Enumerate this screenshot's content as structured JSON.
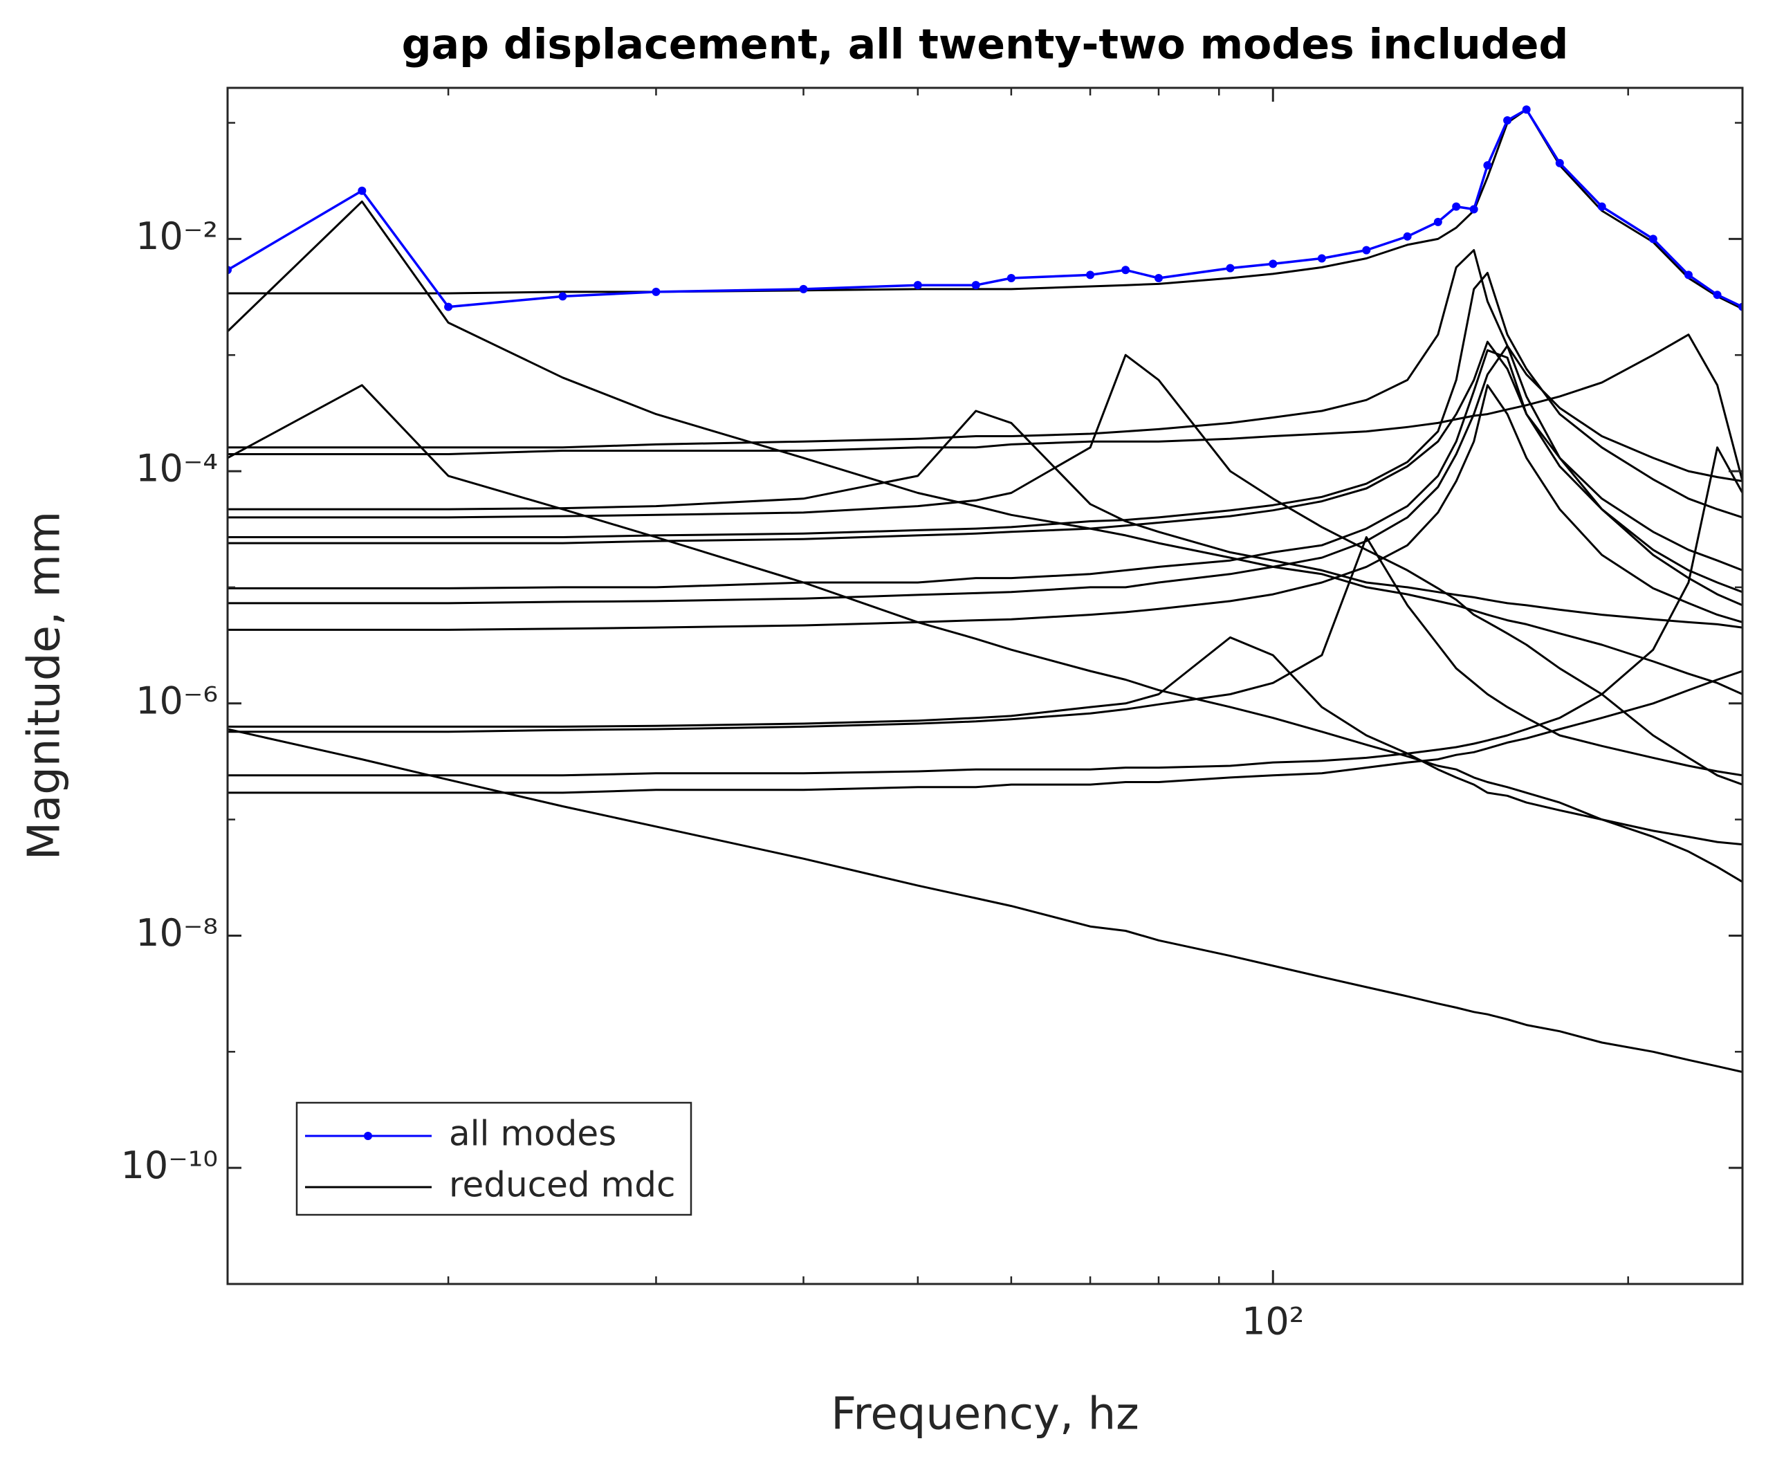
{
  "chart_data": {
    "type": "line",
    "title": "gap displacement, all twenty-two modes included",
    "x_label": "Frequency, hz",
    "y_label": "Magnitude, mm",
    "xscale": "log",
    "yscale": "log",
    "xlim": [
      13,
      250
    ],
    "ylim": [
      1e-11,
      0.2
    ],
    "xticks": [
      {
        "value": 100,
        "label": "10²"
      }
    ],
    "xminorticks": [
      20,
      30,
      40,
      50,
      60,
      70,
      80,
      90,
      200
    ],
    "yticks": [
      {
        "value": 1e-10,
        "label": "10⁻¹⁰"
      },
      {
        "value": 1e-08,
        "label": "10⁻⁸"
      },
      {
        "value": 1e-06,
        "label": "10⁻⁶"
      },
      {
        "value": 0.0001,
        "label": "10⁻⁴"
      },
      {
        "value": 0.01,
        "label": "10⁻²"
      }
    ],
    "yminorticks": [
      1e-09,
      1e-07,
      1e-05,
      0.001,
      0.1
    ],
    "grid": false,
    "legend": "lower left",
    "x": [
      13,
      16.9,
      20,
      25,
      30,
      40,
      50,
      56,
      60,
      70,
      75,
      80,
      92,
      100,
      110,
      120,
      130,
      138,
      143,
      148,
      152,
      158,
      164,
      175,
      190,
      210,
      225,
      238,
      250
    ],
    "series": [
      {
        "name": "all modes",
        "color": "#0000ff",
        "marker": "dot",
        "values": [
          0.0054,
          0.026,
          0.0026,
          0.0032,
          0.0035,
          0.0037,
          0.004,
          0.004,
          0.0046,
          0.0049,
          0.0054,
          0.0046,
          0.0056,
          0.0061,
          0.0068,
          0.008,
          0.0105,
          0.014,
          0.019,
          0.018,
          0.043,
          0.105,
          0.13,
          0.045,
          0.019,
          0.01,
          0.0049,
          0.0033,
          0.0026
        ]
      },
      {
        "name": "reduced mdc",
        "color": "#000000",
        "values": [
          [
            0.0016,
            0.021,
            0.0019,
            0.00064,
            0.00031,
            0.00013,
            6.5e-05,
            5e-05,
            4.2e-05,
            3.2e-05,
            2.8e-05,
            2.4e-05,
            1.8e-05,
            1.5e-05,
            1.3e-05,
            1e-05,
            8.7e-06,
            7.6e-06,
            7e-06,
            6.3e-06,
            5.8e-06,
            5.2e-06,
            4.8e-06,
            4e-06,
            3.2e-06,
            2.3e-06,
            1.8e-06,
            1.5e-06,
            1.2e-06
          ],
          [
            0.00013,
            0.00055,
            9.1e-05,
            4.7e-05,
            2.7e-05,
            1.1e-05,
            5e-06,
            3.6e-06,
            2.9e-06,
            1.9e-06,
            1.6e-06,
            1.3e-06,
            9.3e-07,
            7.5e-07,
            5.7e-07,
            4.4e-07,
            3.5e-07,
            2.9e-07,
            2.7e-07,
            2.3e-07,
            2.1e-07,
            1.9e-07,
            1.7e-07,
            1.4e-07,
            1e-07,
            7.1e-08,
            5.3e-08,
            3.9e-08,
            2.9e-08
          ],
          [
            6e-07,
            3.3e-07,
            2.2e-07,
            1.3e-07,
            8.7e-08,
            4.6e-08,
            2.7e-08,
            2.1e-08,
            1.8e-08,
            1.2e-08,
            1.1e-08,
            9.1e-09,
            6.7e-09,
            5.5e-09,
            4.4e-09,
            3.6e-09,
            3e-09,
            2.6e-09,
            2.4e-09,
            2.2e-09,
            2.1e-09,
            1.9e-09,
            1.7e-09,
            1.5e-09,
            1.2e-09,
            1e-09,
            8.5e-10,
            7.5e-10,
            6.7e-10
          ],
          [
            0.0034,
            0.0034,
            0.0034,
            0.0035,
            0.0035,
            0.0036,
            0.0037,
            0.0037,
            0.0037,
            0.0039,
            0.004,
            0.0041,
            0.0046,
            0.005,
            0.0057,
            0.0068,
            0.0089,
            0.01,
            0.0125,
            0.0175,
            0.034,
            0.1,
            0.13,
            0.043,
            0.0175,
            0.0094,
            0.0046,
            0.0032,
            0.0025
          ],
          [
            4.7e-05,
            4.7e-05,
            4.7e-05,
            4.8e-05,
            5e-05,
            5.8e-05,
            9.1e-05,
            0.00033,
            0.00026,
            5.2e-05,
            3.7e-05,
            3e-05,
            2e-05,
            1.7e-05,
            1.4e-05,
            1.1e-05,
            1e-05,
            9.1e-06,
            8.6e-06,
            8.2e-06,
            7.8e-06,
            7.3e-06,
            7e-06,
            6.4e-06,
            5.8e-06,
            5.3e-06,
            5e-06,
            4.8e-06,
            4.5e-06
          ],
          [
            4e-05,
            4e-05,
            4e-05,
            4.1e-05,
            4.2e-05,
            4.4e-05,
            5e-05,
            5.6e-05,
            6.5e-05,
            0.00016,
            0.001,
            0.00061,
            0.0001,
            5.8e-05,
            3.3e-05,
            2.1e-05,
            1.4e-05,
            9.8e-06,
            7.8e-06,
            5.8e-06,
            5e-06,
            4e-06,
            3.2e-06,
            2e-06,
            1.2e-06,
            5.3e-07,
            3.4e-07,
            2.4e-07,
            2e-07
          ],
          [
            6.3e-07,
            6.3e-07,
            6.3e-07,
            6.3e-07,
            6.4e-07,
            6.7e-07,
            7.1e-07,
            7.5e-07,
            7.8e-07,
            9.3e-07,
            1e-06,
            1.2e-06,
            3.7e-06,
            2.6e-06,
            9.3e-07,
            5.3e-07,
            3.7e-07,
            2.7e-07,
            2.3e-07,
            2e-07,
            1.7e-07,
            1.6e-07,
            1.4e-07,
            1.2e-07,
            1e-07,
            8e-08,
            7.1e-08,
            6.4e-08,
            6.1e-08
          ],
          [
            5.7e-07,
            5.7e-07,
            5.7e-07,
            5.9e-07,
            6e-07,
            6.3e-07,
            6.7e-07,
            7e-07,
            7.3e-07,
            8.2e-07,
            8.9e-07,
            9.8e-07,
            1.2e-06,
            1.5e-06,
            2.6e-06,
            2.7e-05,
            7e-06,
            3.2e-06,
            2e-06,
            1.5e-06,
            1.2e-06,
            9.3e-07,
            7.5e-07,
            5.3e-07,
            4.3e-07,
            3.4e-07,
            2.9e-07,
            2.6e-07,
            2.4e-07
          ],
          [
            2.4e-07,
            2.4e-07,
            2.4e-07,
            2.4e-07,
            2.5e-07,
            2.5e-07,
            2.6e-07,
            2.7e-07,
            2.7e-07,
            2.7e-07,
            2.8e-07,
            2.8e-07,
            2.9e-07,
            3.1e-07,
            3.2e-07,
            3.4e-07,
            3.7e-07,
            4e-07,
            4.2e-07,
            4.5e-07,
            4.8e-07,
            5.3e-07,
            6e-07,
            7.5e-07,
            1.2e-06,
            2.9e-06,
            1.1e-05,
            0.00016,
            6.5e-05
          ],
          [
            0.00014,
            0.00014,
            0.00014,
            0.00015,
            0.00015,
            0.00015,
            0.00016,
            0.00016,
            0.00017,
            0.00018,
            0.00018,
            0.00018,
            0.00019,
            0.0002,
            0.00021,
            0.00022,
            0.00024,
            0.00026,
            0.00028,
            0.0003,
            0.00031,
            0.00034,
            0.00037,
            0.00044,
            0.00058,
            0.001,
            0.0015,
            0.00055,
            8.2e-05
          ],
          [
            0.00016,
            0.00016,
            0.00016,
            0.00016,
            0.00017,
            0.00018,
            0.00019,
            0.0002,
            0.0002,
            0.00021,
            0.00022,
            0.00023,
            0.00026,
            0.00029,
            0.00033,
            0.00041,
            0.00061,
            0.0015,
            0.0057,
            0.008,
            0.0029,
            0.0012,
            0.00068,
            0.00035,
            0.0002,
            0.00013,
            0.0001,
            8.9e-05,
            8.2e-05
          ],
          [
            2.7e-05,
            2.7e-05,
            2.7e-05,
            2.7e-05,
            2.8e-05,
            2.9e-05,
            3.1e-05,
            3.2e-05,
            3.3e-05,
            3.7e-05,
            3.8e-05,
            4e-05,
            4.6e-05,
            5.1e-05,
            6e-05,
            7.8e-05,
            0.00012,
            0.00022,
            0.00061,
            0.0037,
            0.0051,
            0.0015,
            0.00076,
            0.00031,
            0.00016,
            8.5e-05,
            5.8e-05,
            4.7e-05,
            4e-05
          ],
          [
            2.4e-05,
            2.4e-05,
            2.4e-05,
            2.4e-05,
            2.5e-05,
            2.6e-05,
            2.8e-05,
            2.9e-05,
            3e-05,
            3.2e-05,
            3.4e-05,
            3.6e-05,
            4.1e-05,
            4.6e-05,
            5.5e-05,
            7.1e-05,
            0.00011,
            0.00018,
            0.00031,
            0.00061,
            0.0013,
            0.00076,
            0.00031,
            0.00013,
            5.8e-05,
            3e-05,
            2.1e-05,
            1.7e-05,
            1.4e-05
          ],
          [
            9.8e-06,
            9.8e-06,
            9.8e-06,
            1e-05,
            1e-05,
            1.1e-05,
            1.1e-05,
            1.2e-05,
            1.2e-05,
            1.3e-05,
            1.4e-05,
            1.5e-05,
            1.7e-05,
            2e-05,
            2.3e-05,
            3.2e-05,
            5e-05,
            9.1e-05,
            0.00018,
            0.00049,
            0.0011,
            0.00095,
            0.00031,
            0.00011,
            4.7e-05,
            2.1e-05,
            1.4e-05,
            1.1e-05,
            9.1e-06
          ],
          [
            7.3e-06,
            7.3e-06,
            7.3e-06,
            7.5e-06,
            7.6e-06,
            8e-06,
            8.6e-06,
            8.9e-06,
            9.1e-06,
            1e-05,
            1e-05,
            1.1e-05,
            1.3e-05,
            1.5e-05,
            1.8e-05,
            2.5e-05,
            4e-05,
            7.3e-05,
            0.00014,
            0.00031,
            0.00068,
            0.0012,
            0.00044,
            0.00013,
            4.7e-05,
            1.9e-05,
            1.2e-05,
            8.7e-06,
            7e-06
          ],
          [
            4.3e-06,
            4.3e-06,
            4.3e-06,
            4.4e-06,
            4.5e-06,
            4.7e-06,
            5e-06,
            5.2e-06,
            5.3e-06,
            5.8e-06,
            6.1e-06,
            6.5e-06,
            7.6e-06,
            8.7e-06,
            1.1e-05,
            1.5e-05,
            2.3e-05,
            4.4e-05,
            8.2e-05,
            0.00018,
            0.00055,
            0.00031,
            0.00013,
            4.7e-05,
            1.9e-05,
            9.8e-06,
            7.3e-06,
            5.8e-06,
            5e-06
          ],
          [
            1.7e-07,
            1.7e-07,
            1.7e-07,
            1.7e-07,
            1.8e-07,
            1.8e-07,
            1.9e-07,
            1.9e-07,
            2e-07,
            2e-07,
            2.1e-07,
            2.1e-07,
            2.3e-07,
            2.4e-07,
            2.5e-07,
            2.8e-07,
            3.1e-07,
            3.3e-07,
            3.6e-07,
            3.8e-07,
            4.1e-07,
            4.6e-07,
            5e-07,
            6e-07,
            7.5e-07,
            1e-06,
            1.3e-06,
            1.6e-06,
            1.9e-06
          ]
        ]
      }
    ]
  }
}
